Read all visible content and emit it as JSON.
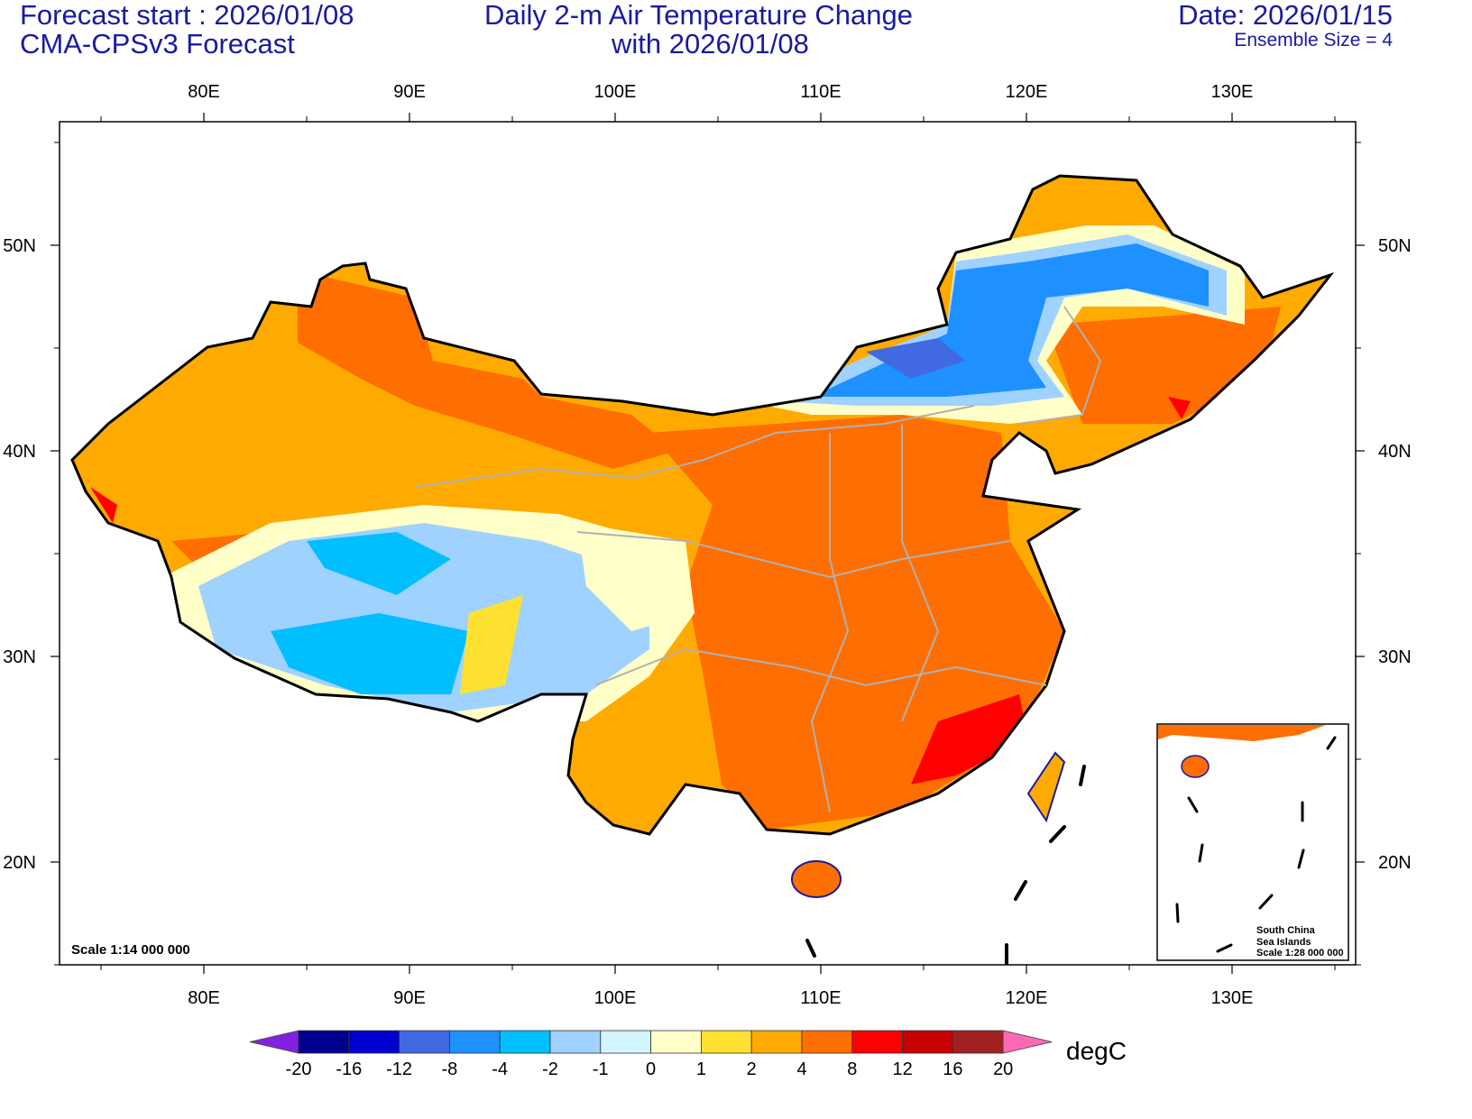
{
  "header": {
    "left_line1": "Forecast start : 2026/01/08",
    "left_line2": "CMA-CPSv3 Forecast",
    "center_line1": "Daily 2-m Air Temperature Change",
    "center_line2": "with 2026/01/08",
    "right_line1": "Date: 2026/01/15",
    "right_line2": "Ensemble Size = 4"
  },
  "axes": {
    "lon_labels": [
      "80E",
      "90E",
      "100E",
      "110E",
      "120E",
      "130E"
    ],
    "lat_labels": [
      "50N",
      "40N",
      "30N",
      "20N"
    ]
  },
  "map": {
    "scale_text": "Scale 1:14 000 000",
    "inset_line1": "South China",
    "inset_line2": "Sea Islands",
    "inset_line3": "Scale 1:28 000 000"
  },
  "colorbar": {
    "unit": "degC",
    "labels": [
      "-20",
      "-16",
      "-12",
      "-8",
      "-4",
      "-2",
      "-1",
      "0",
      "1",
      "2",
      "4",
      "8",
      "12",
      "16",
      "20"
    ],
    "colors": [
      "#000090",
      "#0000d0",
      "#4169e1",
      "#1e90ff",
      "#00bfff",
      "#a0d2ff",
      "#d2f5ff",
      "#ffffc8",
      "#ffe132",
      "#ffaa00",
      "#ff6e00",
      "#ff0000",
      "#c80000",
      "#a02020"
    ],
    "under_color": "#8020e0",
    "over_color": "#ff69b4"
  }
}
